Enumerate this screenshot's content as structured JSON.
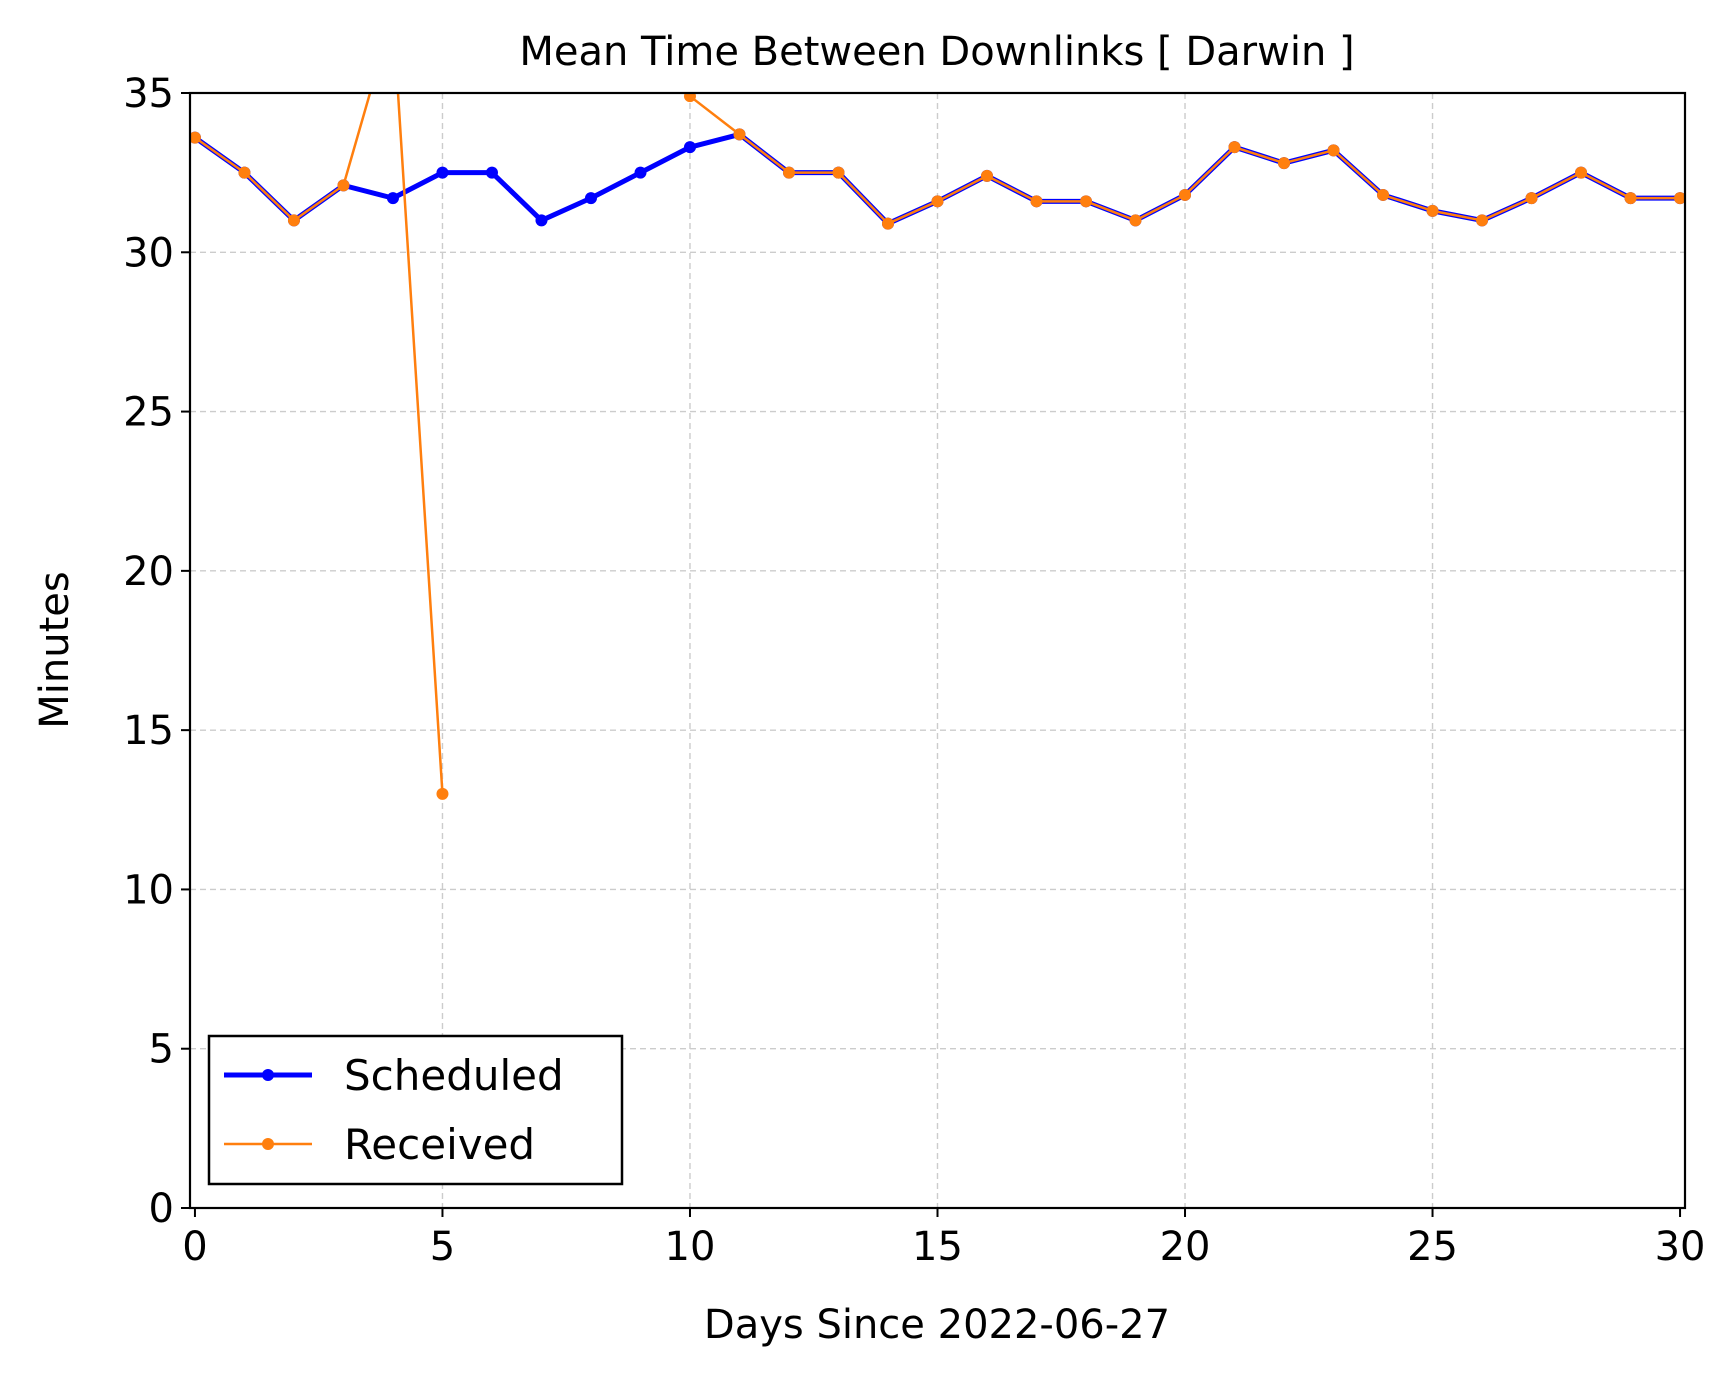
{
  "chart_data": {
    "type": "line",
    "title": "Mean Time Between Downlinks [ Darwin ]",
    "xlabel": "Days Since 2022-06-27",
    "ylabel": "Minutes",
    "xlim": [
      -0.1,
      30.1
    ],
    "ylim": [
      0,
      35
    ],
    "xticks": [
      0,
      5,
      10,
      15,
      20,
      25,
      30
    ],
    "yticks": [
      0,
      5,
      10,
      15,
      20,
      25,
      30,
      35
    ],
    "grid": true,
    "legend_position": "lower-left",
    "series": [
      {
        "name": "Scheduled",
        "color": "#0000ff",
        "x": [
          0,
          1,
          2,
          3,
          4,
          5,
          6,
          7,
          8,
          9,
          10,
          11,
          12,
          13,
          14,
          15,
          16,
          17,
          18,
          19,
          20,
          21,
          22,
          23,
          24,
          25,
          26,
          27,
          28,
          29,
          30
        ],
        "values": [
          33.6,
          32.5,
          31.0,
          32.1,
          31.7,
          32.5,
          32.5,
          31.0,
          31.7,
          32.5,
          33.3,
          33.7,
          32.5,
          32.5,
          30.9,
          31.6,
          32.4,
          31.6,
          31.6,
          31.0,
          31.8,
          33.3,
          32.8,
          33.2,
          31.8,
          31.3,
          31.0,
          31.7,
          32.5,
          31.7,
          31.7
        ]
      },
      {
        "name": "Received",
        "color": "#ff7f0e",
        "x": [
          0,
          1,
          2,
          3,
          4,
          5,
          10,
          11,
          12,
          13,
          14,
          15,
          16,
          17,
          18,
          19,
          20,
          21,
          22,
          23,
          24,
          25,
          26,
          27,
          28,
          29,
          30
        ],
        "values": [
          33.6,
          32.5,
          31.0,
          32.1,
          37.5,
          13.0,
          34.9,
          33.7,
          32.5,
          32.5,
          30.9,
          31.6,
          32.4,
          31.6,
          31.6,
          31.0,
          31.8,
          33.3,
          32.8,
          33.2,
          31.8,
          31.3,
          31.0,
          31.7,
          32.5,
          31.7,
          31.7
        ],
        "segment_breaks_after_index": [
          5
        ]
      }
    ]
  }
}
